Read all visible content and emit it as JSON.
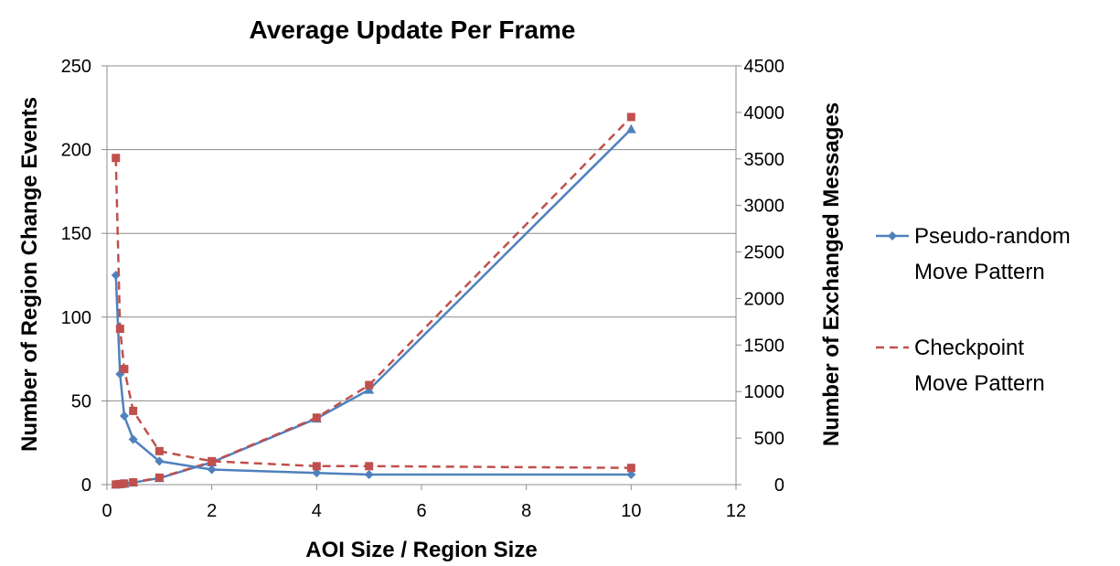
{
  "chart_data": {
    "type": "line",
    "title": "Average Update Per Frame",
    "xlabel": "AOI Size / Region Size",
    "ylabel_left": "Number of Region Change Events",
    "ylabel_right": "Number of Exchanged Messages",
    "xlim": [
      0,
      12
    ],
    "ylim_left": [
      0,
      250
    ],
    "ylim_right": [
      0,
      4500
    ],
    "x_ticks": [
      "0",
      "2",
      "4",
      "6",
      "8",
      "10",
      "12"
    ],
    "y_left_ticks": [
      "0",
      "50",
      "100",
      "150",
      "200",
      "250"
    ],
    "y_right_ticks": [
      "0",
      "500",
      "1000",
      "1500",
      "2000",
      "2500",
      "3000",
      "3500",
      "4000",
      "4500"
    ],
    "grid": "horizontal major gridlines",
    "legend_position": "right",
    "legend": [
      {
        "line1": "Pseudo-random",
        "line2": "Move Pattern",
        "color": "#4f81bd",
        "style": "solid",
        "marker": "diamond"
      },
      {
        "line1": "Checkpoint",
        "line2": "Move Pattern",
        "color": "#c0504d",
        "style": "dashed",
        "marker": "square"
      }
    ],
    "series": [
      {
        "name": "Pseudo-random Move Pattern",
        "metric": "Region Change Events",
        "axis": "left",
        "color": "#4f81bd",
        "style": "solid",
        "marker": "diamond",
        "x": [
          0.17,
          0.25,
          0.33,
          0.5,
          1,
          2,
          4,
          5,
          10
        ],
        "values": [
          125,
          66,
          41,
          27,
          14,
          9,
          7,
          6,
          6
        ]
      },
      {
        "name": "Checkpoint Move Pattern",
        "metric": "Region Change Events",
        "axis": "left",
        "color": "#c0504d",
        "style": "dashed",
        "marker": "square",
        "x": [
          0.17,
          0.25,
          0.33,
          0.5,
          1,
          2,
          4,
          5,
          10
        ],
        "values": [
          195,
          93,
          69,
          44,
          20,
          14,
          11,
          11,
          10
        ]
      },
      {
        "name": "Pseudo-random Move Pattern",
        "metric": "Exchanged Messages",
        "axis": "right",
        "color": "#4f81bd",
        "style": "solid",
        "marker": "triangle",
        "x": [
          0.17,
          0.25,
          0.33,
          0.5,
          1,
          2,
          4,
          5,
          10
        ],
        "values": [
          2,
          5,
          10,
          22,
          70,
          240,
          710,
          1020,
          3820
        ]
      },
      {
        "name": "Checkpoint Move Pattern",
        "metric": "Exchanged Messages",
        "axis": "right",
        "color": "#c0504d",
        "style": "dashed",
        "marker": "square",
        "x": [
          0.17,
          0.25,
          0.33,
          0.5,
          1,
          2,
          4,
          5,
          10
        ],
        "values": [
          2,
          6,
          12,
          25,
          75,
          245,
          720,
          1070,
          3950
        ]
      }
    ]
  }
}
